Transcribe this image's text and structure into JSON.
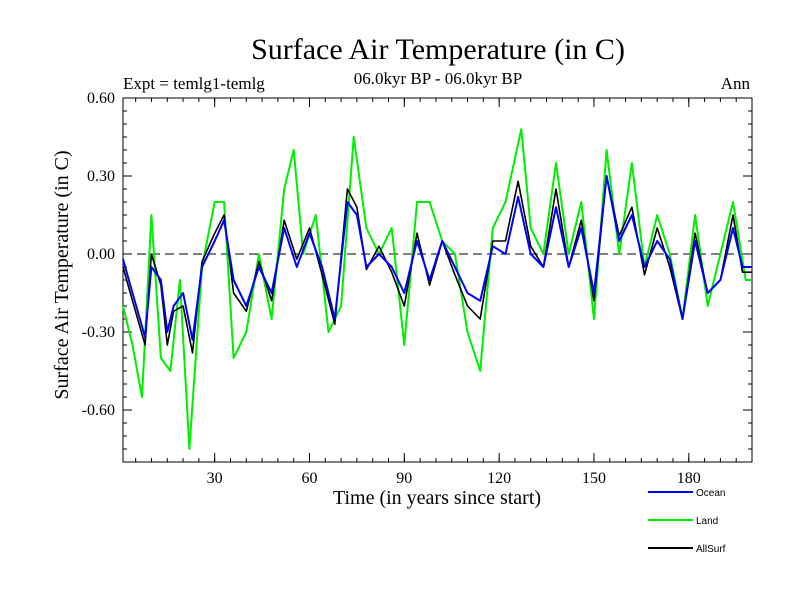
{
  "chart_data": {
    "type": "line",
    "title": "Surface Air Temperature (in C)",
    "subtitle": "06.0kyr BP - 06.0kyr BP",
    "expt_label": "Expt = temlg1-temlg",
    "season_label": "Ann",
    "xlabel": "Time (in years since start)",
    "ylabel": "Surface Air Temperature (in C)",
    "xlim": [
      1,
      200
    ],
    "ylim": [
      -0.8,
      0.6
    ],
    "xticks": [
      30,
      60,
      90,
      120,
      150,
      180
    ],
    "xtick_labels": [
      "30",
      "60",
      "90",
      "120",
      "150",
      "180"
    ],
    "yticks": [
      0.6,
      0.3,
      0.0,
      -0.3,
      -0.6
    ],
    "ytick_labels": [
      "0.60",
      "0.30",
      "0.00",
      "-0.30",
      "-0.60"
    ],
    "reference_line": 0.0,
    "series": [
      {
        "name": "Ocean",
        "color": "#0000ff",
        "x": [
          1,
          4,
          8,
          10,
          13,
          15,
          17,
          20,
          23,
          26,
          30,
          33,
          36,
          40,
          44,
          48,
          52,
          56,
          60,
          64,
          68,
          72,
          75,
          78,
          82,
          86,
          90,
          94,
          98,
          102,
          106,
          110,
          114,
          118,
          122,
          126,
          130,
          134,
          138,
          142,
          146,
          150,
          154,
          158,
          162,
          166,
          170,
          174,
          178,
          182,
          186,
          190,
          194,
          197,
          200
        ],
        "values": [
          -0.02,
          -0.15,
          -0.32,
          -0.05,
          -0.1,
          -0.3,
          -0.2,
          -0.15,
          -0.33,
          -0.05,
          0.05,
          0.13,
          -0.1,
          -0.2,
          -0.05,
          -0.15,
          0.1,
          -0.05,
          0.08,
          -0.05,
          -0.25,
          0.2,
          0.15,
          -0.05,
          0.0,
          -0.05,
          -0.15,
          0.05,
          -0.1,
          0.05,
          -0.05,
          -0.15,
          -0.18,
          0.03,
          0.0,
          0.22,
          0.0,
          -0.05,
          0.18,
          -0.05,
          0.1,
          -0.15,
          0.3,
          0.05,
          0.15,
          -0.05,
          0.05,
          -0.02,
          -0.25,
          0.05,
          -0.15,
          -0.1,
          0.1,
          -0.05,
          -0.05
        ]
      },
      {
        "name": "Land",
        "color": "#00ee00",
        "x": [
          1,
          4,
          7,
          10,
          13,
          16,
          19,
          22,
          26,
          30,
          33,
          36,
          40,
          44,
          48,
          52,
          55,
          58,
          62,
          66,
          70,
          74,
          78,
          82,
          86,
          90,
          94,
          98,
          102,
          106,
          110,
          114,
          118,
          122,
          127,
          130,
          134,
          138,
          142,
          146,
          150,
          154,
          158,
          162,
          166,
          170,
          174,
          178,
          182,
          186,
          190,
          194,
          198,
          200
        ],
        "values": [
          -0.2,
          -0.35,
          -0.55,
          0.15,
          -0.4,
          -0.45,
          -0.1,
          -0.75,
          -0.05,
          0.2,
          0.2,
          -0.4,
          -0.3,
          0.0,
          -0.25,
          0.25,
          0.4,
          0.0,
          0.15,
          -0.3,
          -0.2,
          0.45,
          0.1,
          0.0,
          0.1,
          -0.35,
          0.2,
          0.2,
          0.05,
          0.0,
          -0.3,
          -0.45,
          0.1,
          0.2,
          0.48,
          0.1,
          0.0,
          0.35,
          0.0,
          0.2,
          -0.25,
          0.4,
          0.0,
          0.35,
          -0.05,
          0.15,
          0.0,
          -0.25,
          0.15,
          -0.2,
          0.0,
          0.2,
          -0.1,
          -0.1
        ]
      },
      {
        "name": "AllSurf",
        "color": "#000000",
        "x": [
          1,
          4,
          8,
          10,
          13,
          15,
          17,
          20,
          23,
          26,
          30,
          33,
          36,
          40,
          44,
          48,
          52,
          56,
          60,
          64,
          68,
          72,
          75,
          78,
          82,
          86,
          90,
          94,
          98,
          102,
          106,
          110,
          114,
          118,
          122,
          126,
          130,
          134,
          138,
          142,
          146,
          150,
          154,
          158,
          162,
          166,
          170,
          174,
          178,
          182,
          186,
          190,
          194,
          197,
          200
        ],
        "values": [
          -0.05,
          -0.18,
          -0.35,
          0.0,
          -0.12,
          -0.35,
          -0.22,
          -0.2,
          -0.38,
          -0.03,
          0.08,
          0.15,
          -0.15,
          -0.22,
          -0.03,
          -0.18,
          0.13,
          -0.02,
          0.1,
          -0.08,
          -0.27,
          0.25,
          0.18,
          -0.06,
          0.03,
          -0.07,
          -0.2,
          0.08,
          -0.12,
          0.05,
          -0.08,
          -0.2,
          -0.25,
          0.05,
          0.05,
          0.28,
          0.03,
          -0.05,
          0.25,
          -0.05,
          0.13,
          -0.18,
          0.3,
          0.07,
          0.18,
          -0.08,
          0.1,
          -0.05,
          -0.25,
          0.08,
          -0.15,
          -0.1,
          0.15,
          -0.07,
          -0.07
        ]
      }
    ]
  }
}
